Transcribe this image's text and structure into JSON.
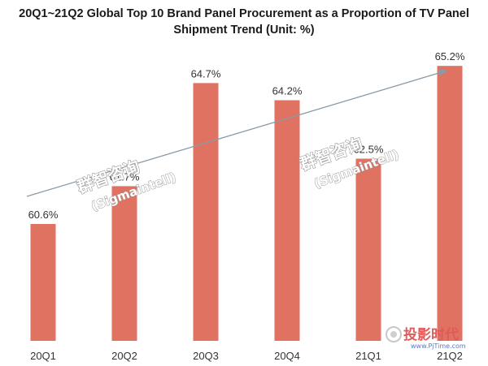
{
  "chart_data": {
    "type": "bar",
    "title": "20Q1~21Q2 Global Top 10 Brand Panel Procurement as a Proportion of TV Panel Shipment Trend (Unit: %)",
    "title_line1": "20Q1~21Q2 Global Top 10 Brand Panel Procurement as a Proportion of TV Panel",
    "title_line2": "Shipment Trend (Unit: %)",
    "categories": [
      "20Q1",
      "20Q2",
      "20Q3",
      "20Q4",
      "21Q1",
      "21Q2"
    ],
    "values": [
      60.6,
      61.7,
      64.7,
      64.2,
      62.5,
      65.2
    ],
    "data_labels": [
      "60.6%",
      "61.7%",
      "64.7%",
      "64.2%",
      "62.5%",
      "65.2%"
    ],
    "xlabel": "",
    "ylabel": "",
    "ylim": [
      57.2,
      65.7
    ],
    "grid": false,
    "legend": "none",
    "bar_color": "#e07262",
    "trend_arrow": {
      "from": "20Q1",
      "to": "21Q2",
      "color": "#8a9aa8"
    }
  },
  "watermarks": [
    {
      "cn": "群智咨询",
      "en": "(Sigmaintell)"
    },
    {
      "cn": "群智咨询",
      "en": "(Sigmaintell)"
    }
  ],
  "logo": {
    "text": "投影时代",
    "url": "www.PjTime.com"
  }
}
